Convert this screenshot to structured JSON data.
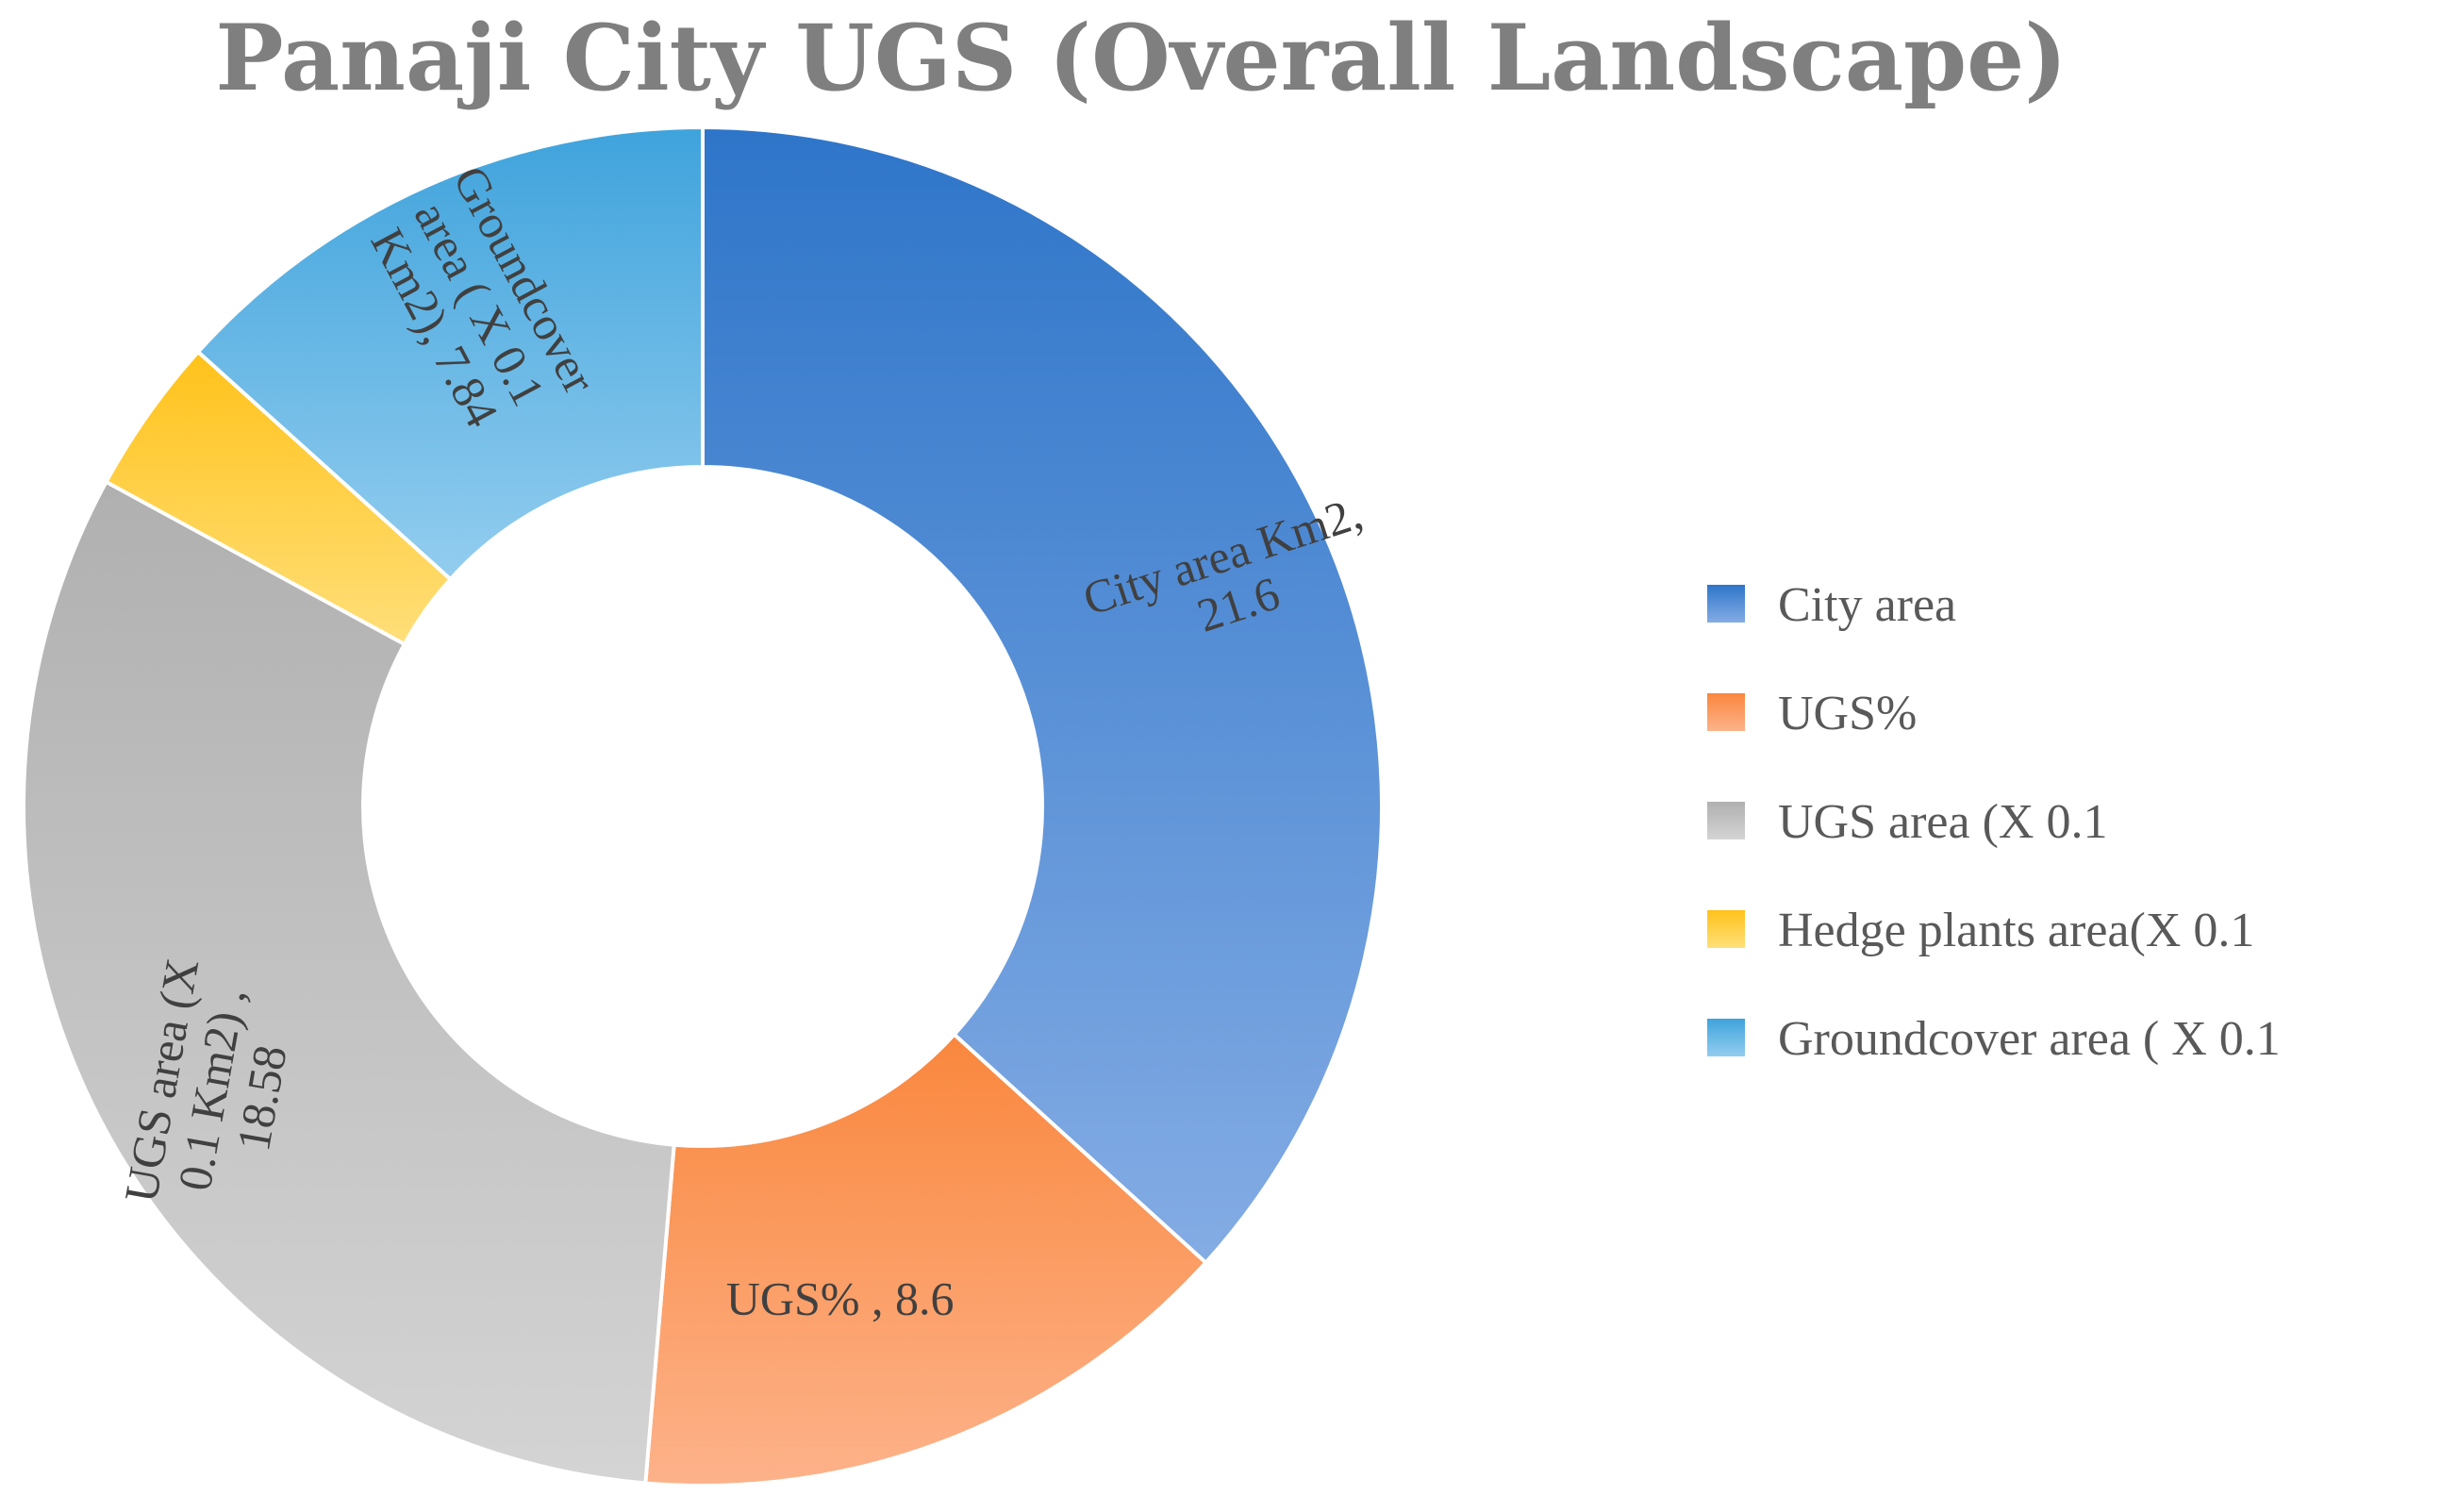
{
  "chart_data": {
    "type": "pie",
    "title": "Panaji City UGS (Overall Landscape)",
    "categories": [
      "City area",
      "UGS%",
      "UGS area (X 0.1",
      "Hedge plants area(X 0.1",
      "Groundcover area ( X 0.1"
    ],
    "values": [
      21.6,
      8.6,
      18.58,
      2.2,
      7.84
    ],
    "slice_labels": [
      [
        "City area Km2,",
        "21.6"
      ],
      [
        "UGS%   , 8.6"
      ],
      [
        "UGS area (X",
        "0.1 Km2)  ,",
        "18.58"
      ],
      [],
      [
        "Groundcover",
        "area ( X 0.1",
        "Km2), 7.84"
      ]
    ],
    "colors": [
      "#2e75c9",
      "#f9873d",
      "#b0b0b0",
      "#ffc21a",
      "#3fa3dc"
    ],
    "colors_light": [
      "#84ace4",
      "#fdb28a",
      "#d4d4d4",
      "#ffdf7a",
      "#93cdef"
    ],
    "legend_position": "right",
    "donut": true
  }
}
